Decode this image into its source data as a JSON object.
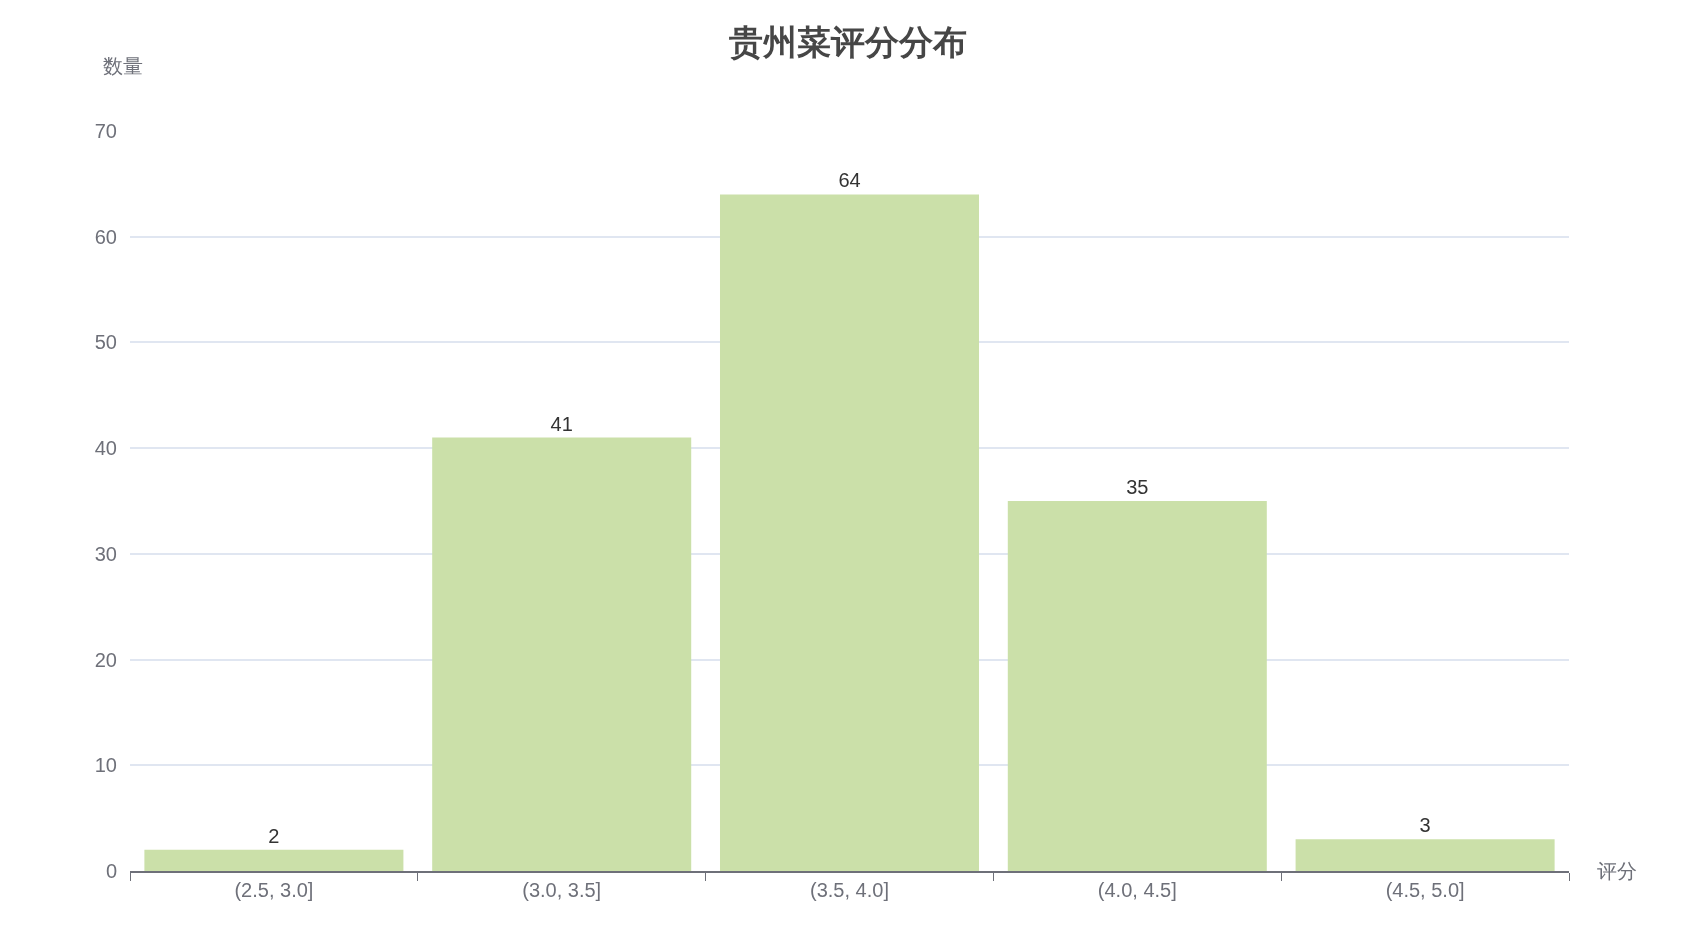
{
  "chart_data": {
    "type": "bar",
    "title": "贵州菜评分分布",
    "xlabel": "评分",
    "ylabel": "数量",
    "categories": [
      "(2.5, 3.0]",
      "(3.0, 3.5]",
      "(3.5, 4.0]",
      "(4.0, 4.5]",
      "(4.5, 5.0]"
    ],
    "values": [
      2,
      41,
      64,
      35,
      3
    ],
    "color": "#cbe0a9",
    "ylim": [
      0,
      70
    ],
    "yticks": [
      0,
      10,
      20,
      30,
      40,
      50,
      60,
      70
    ],
    "grid": "y",
    "data_labels": true,
    "legend": false
  }
}
